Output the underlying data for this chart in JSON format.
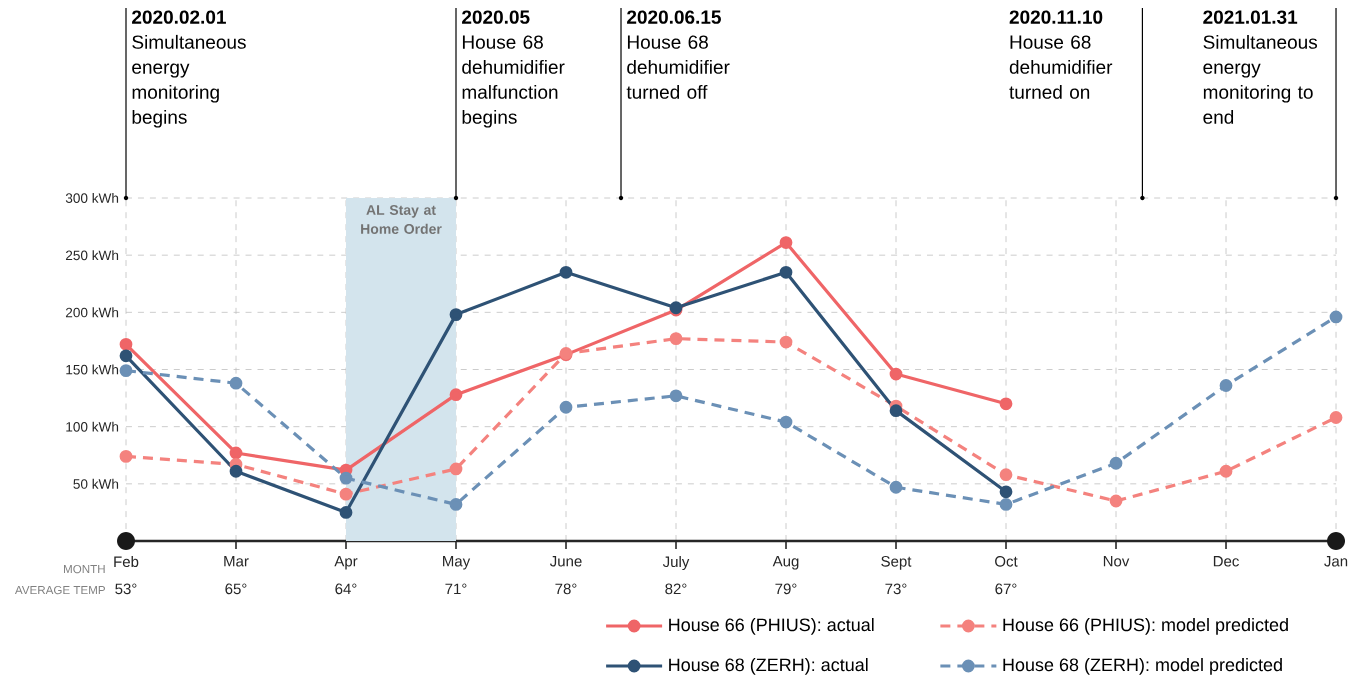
{
  "chart_data": {
    "type": "line",
    "categories": [
      "Feb",
      "Mar",
      "Apr",
      "May",
      "June",
      "July",
      "Aug",
      "Sept",
      "Oct",
      "Nov",
      "Dec",
      "Jan"
    ],
    "series": [
      {
        "name": "House 66 (PHIUS): actual",
        "color": "#ef6567",
        "line_style": "solid",
        "values": [
          172,
          77,
          62,
          128,
          163,
          202,
          261,
          146,
          120,
          null,
          null,
          null
        ]
      },
      {
        "name": "House 66 (PHIUS): model predicted",
        "color": "#f4827e",
        "line_style": "dashed",
        "values": [
          74,
          67,
          41,
          63,
          164,
          177,
          174,
          118,
          58,
          35,
          61,
          108
        ]
      },
      {
        "name": "House 68 (ZERH): actual",
        "color": "#2e5275",
        "line_style": "solid",
        "values": [
          162,
          61,
          25,
          198,
          235,
          204,
          235,
          114,
          43,
          null,
          null,
          null
        ]
      },
      {
        "name": "House 68 (ZERH): model predicted",
        "color": "#6b90b6",
        "line_style": "dashed",
        "values": [
          149,
          138,
          55,
          32,
          117,
          127,
          104,
          47,
          32,
          68,
          136,
          196
        ]
      }
    ],
    "ylim": [
      0,
      300
    ],
    "yticks": [
      {
        "value": 50,
        "label": "50 kWh"
      },
      {
        "value": 100,
        "label": "100 kWh"
      },
      {
        "value": 150,
        "label": "150 kWh"
      },
      {
        "value": 200,
        "label": "200 kWh"
      },
      {
        "value": 250,
        "label": "250 kWh"
      },
      {
        "value": 300,
        "label": "300 kWh"
      }
    ],
    "grid": true,
    "marker": "circle",
    "legend": "bottom",
    "bands": [
      {
        "axis": "x",
        "from": "Apr",
        "to": "May",
        "label": "AL Stay at Home Order",
        "color": "#d3e4ed"
      }
    ],
    "ref_lines": [
      {
        "axis": "x",
        "value": "Feb",
        "label": "**2020.02.01** Simultaneous energy monitoring begins"
      },
      {
        "axis": "x",
        "value": "May",
        "label": "**2020.05** House 68 dehumidifier malfunction begins"
      },
      {
        "axis": "x",
        "value": "Jan",
        "label": "**2021.01.31** Simultaneous energy monitoring to end"
      }
    ],
    "annotations": [
      "MONTH",
      "AVERAGE TEMP",
      "53°",
      "65°",
      "64°",
      "71°",
      "78°",
      "82°",
      "79°",
      "73°",
      "67°",
      "**2020.06.15** House 68 dehumidifier turned off",
      "**2020.11.10** House 68 dehumidifier turned on"
    ]
  }
}
